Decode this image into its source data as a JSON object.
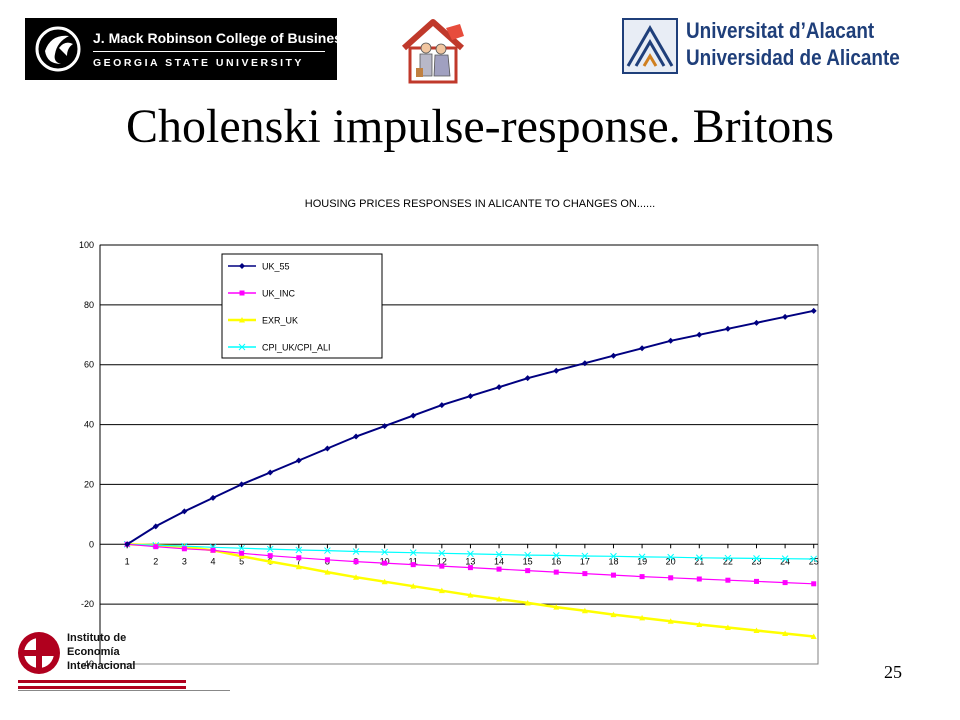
{
  "header": {
    "gsu_logo": {
      "line1": "J. Mack Robinson College of Business",
      "line2": "GEORGIA STATE UNIVERSITY"
    },
    "ua_logo": {
      "line1": "Universitat d’Alacant",
      "line2": "Universidad de Alicante"
    }
  },
  "slide": {
    "title": "Cholenski impulse-response. Britons",
    "page_number": "25"
  },
  "footer": {
    "iei_logo": {
      "line1": "Instituto de",
      "line2": "Economía",
      "line3": "Internacional"
    }
  },
  "colors": {
    "UK_55": "#000080",
    "UK_INC": "#ff00ff",
    "EXR_UK": "#ffff00",
    "CPI": "#00ffff",
    "plot_bg": "#ffffff",
    "grid": "#000000"
  },
  "chart_data": {
    "type": "line",
    "title": "HOUSING PRICES RESPONSES IN ALICANTE TO CHANGES ON......",
    "xlabel": "",
    "ylabel": "",
    "x": [
      1,
      2,
      3,
      4,
      5,
      6,
      7,
      8,
      9,
      10,
      11,
      12,
      13,
      14,
      15,
      16,
      17,
      18,
      19,
      20,
      21,
      22,
      23,
      24,
      25
    ],
    "ylim": [
      -40,
      100
    ],
    "yticks": [
      -40,
      -20,
      0,
      20,
      40,
      60,
      80,
      100
    ],
    "grid": "horizontal",
    "legend_position": "top-left",
    "series": [
      {
        "name": "UK_55",
        "color_key": "UK_55",
        "marker": "diamond",
        "values": [
          0,
          6,
          11,
          15.5,
          20,
          24,
          28,
          32,
          36,
          39.5,
          43,
          46.5,
          49.5,
          52.5,
          55.5,
          58,
          60.5,
          63,
          65.5,
          68,
          70,
          72,
          74,
          76,
          78
        ]
      },
      {
        "name": "UK_INC",
        "color_key": "UK_INC",
        "marker": "square",
        "values": [
          0,
          -0.8,
          -1.5,
          -2,
          -3,
          -3.8,
          -4.5,
          -5.2,
          -5.8,
          -6.3,
          -6.8,
          -7.3,
          -7.8,
          -8.3,
          -8.8,
          -9.3,
          -9.8,
          -10.3,
          -10.8,
          -11.2,
          -11.6,
          -12,
          -12.4,
          -12.8,
          -13.2
        ]
      },
      {
        "name": "EXR_UK",
        "color_key": "EXR_UK",
        "marker": "triangle",
        "values": [
          0,
          -0.3,
          -0.8,
          -2,
          -4,
          -5.8,
          -7.5,
          -9.3,
          -11,
          -12.5,
          -14,
          -15.5,
          -17,
          -18.3,
          -19.6,
          -21,
          -22.2,
          -23.5,
          -24.6,
          -25.7,
          -26.8,
          -27.8,
          -28.8,
          -29.8,
          -30.8
        ]
      },
      {
        "name": "CPI_UK/CPI_ALI",
        "color_key": "CPI",
        "marker": "x",
        "values": [
          0,
          -0.3,
          -0.6,
          -1,
          -1.3,
          -1.6,
          -1.9,
          -2.1,
          -2.4,
          -2.6,
          -2.8,
          -3,
          -3.2,
          -3.4,
          -3.6,
          -3.7,
          -3.9,
          -4,
          -4.2,
          -4.3,
          -4.5,
          -4.6,
          -4.7,
          -4.8,
          -4.9
        ]
      }
    ]
  }
}
